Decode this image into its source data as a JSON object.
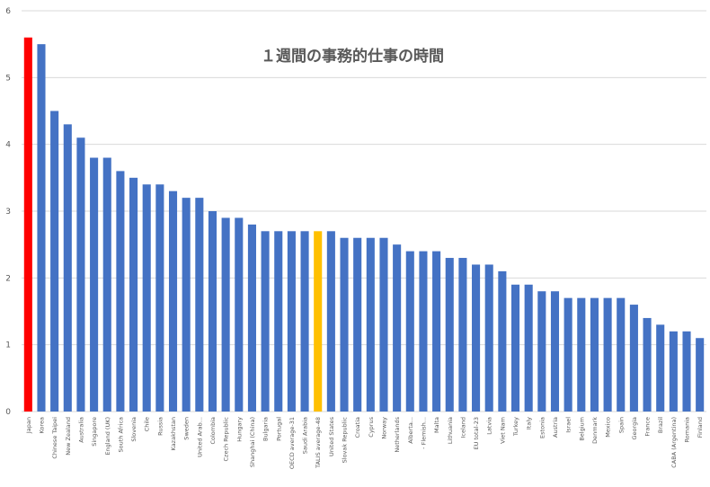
{
  "chart_data": {
    "type": "bar",
    "title": "１週間の事務的仕事の時間",
    "xlabel": "",
    "ylabel": "",
    "ylim": [
      0,
      6
    ],
    "yticks": [
      0,
      1,
      2,
      3,
      4,
      5,
      6
    ],
    "grid": true,
    "legend": "none",
    "categories": [
      "Japan",
      "Korea",
      "Chinese Taipei",
      "New Zealand",
      "Australia",
      "Singapore",
      "England (UK)",
      "South Africa",
      "Slovenia",
      "Chile",
      "Russia",
      "Kazakhstan",
      "Sweden",
      "United Arab...",
      "Colombia",
      "Czech Republic",
      "Hungary",
      "Shanghai (China)",
      "Bulgaria",
      "Portugal",
      "OECD average-31",
      "Saudi Arabia",
      "TALIS average-48",
      "United States",
      "Slovak Republic",
      "Croatia",
      "Cyprus",
      "Norway",
      "Netherlands",
      "Alberta...",
      "- Flemish...",
      "Malta",
      "Lithuania",
      "Iceland",
      "EU total-23",
      "Latvia",
      "Viet Nam",
      "Turkey",
      "Italy",
      "Estonia",
      "Austria",
      "Israel",
      "Belgium",
      "Denmark",
      "Mexico",
      "Spain",
      "Georgia",
      "France",
      "Brazil",
      "CABA (Argentina)",
      "Romania",
      "Finland"
    ],
    "values": [
      5.6,
      5.5,
      4.5,
      4.3,
      4.1,
      3.8,
      3.8,
      3.6,
      3.5,
      3.4,
      3.4,
      3.3,
      3.2,
      3.2,
      3.0,
      2.9,
      2.9,
      2.8,
      2.7,
      2.7,
      2.7,
      2.7,
      2.7,
      2.7,
      2.6,
      2.6,
      2.6,
      2.6,
      2.5,
      2.4,
      2.4,
      2.4,
      2.3,
      2.3,
      2.2,
      2.2,
      2.1,
      1.9,
      1.9,
      1.8,
      1.8,
      1.7,
      1.7,
      1.7,
      1.7,
      1.7,
      1.6,
      1.4,
      1.3,
      1.2,
      1.2,
      1.1
    ],
    "colors": {
      "default": "#4472C4",
      "highlight_japan": "#FF0000",
      "highlight_talis": "#FFC000",
      "grid": "#D9D9D9",
      "title": "#595959",
      "tick": "#595959"
    },
    "highlight": {
      "Japan": "highlight_japan",
      "TALIS average-48": "highlight_talis"
    }
  }
}
